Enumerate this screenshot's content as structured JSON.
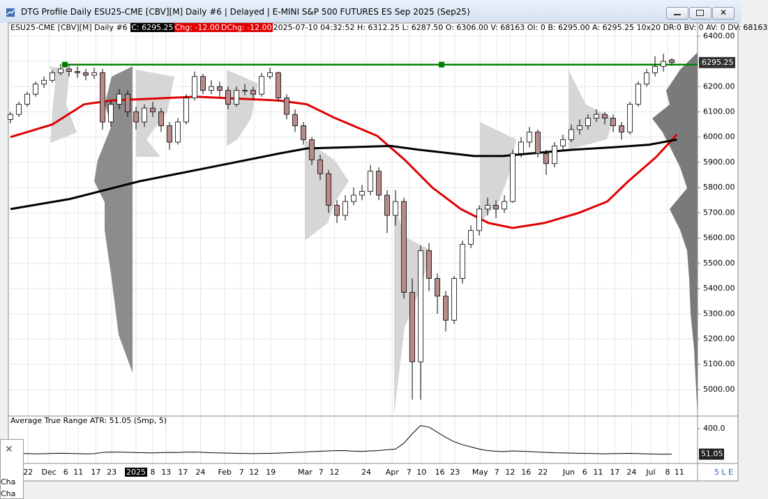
{
  "window": {
    "title": "DTG Profile Daily ESU25-CME [CBV][M]  Daily #6 | Delayed | E-MINI S&P 500 FUTURES ES Sep 2025 (Sep25)",
    "footer": "5 L E"
  },
  "header": {
    "symbol": "ESU25-CME [CBV][M]  Daily #6 ",
    "close": "C: 6295.25",
    "change": "Chg: -12.00",
    "dchange": "DChg: -12.00",
    "quote": "2025-07-10 04:32:52 H: 6312.25 L: 6287.50 O: 6306.00 V: 68163 OI: 0 B: 6295.00 A: 6295.25 10x20 DR:0 BV: 0 AV: 0 DV: 68163"
  },
  "popup": {
    "items": [
      "Cha",
      "Cha"
    ]
  },
  "chart_data": {
    "type": "candlestick",
    "up_color": "#ffffff",
    "down_color": "#b88a8a",
    "open": [
      6070,
      6090,
      6130,
      6170,
      6210,
      6225,
      6255,
      6270,
      6260,
      6255,
      6245,
      6255,
      6060,
      6130,
      6170,
      6100,
      6060,
      6115,
      6100,
      6045,
      5980,
      6060,
      6155,
      6240,
      6185,
      6200,
      6185,
      6130,
      6185,
      6185,
      6170,
      6240,
      6255,
      6155,
      6090,
      6045,
      5990,
      5910,
      5855,
      5730,
      5690,
      5745,
      5770,
      5785,
      5865,
      5770,
      5690,
      5745,
      5385,
      5110,
      5550,
      5440,
      5370,
      5275,
      5440,
      5575,
      5630,
      5715,
      5730,
      5715,
      5745,
      5935,
      5980,
      6020,
      5935,
      5895,
      5965,
      5990,
      6030,
      6045,
      6075,
      6090,
      6075,
      6045,
      6020,
      6130,
      6210,
      6255,
      6280,
      6306
    ],
    "high": [
      6100,
      6140,
      6180,
      6220,
      6240,
      6265,
      6290,
      6285,
      6280,
      6270,
      6275,
      6270,
      6145,
      6190,
      6185,
      6120,
      6130,
      6140,
      6115,
      6060,
      6075,
      6170,
      6260,
      6250,
      6225,
      6220,
      6200,
      6200,
      6210,
      6200,
      6255,
      6275,
      6260,
      6170,
      6110,
      6060,
      6000,
      5930,
      5870,
      5750,
      5770,
      5800,
      5810,
      5890,
      5880,
      5790,
      5790,
      5760,
      5440,
      5570,
      5580,
      5460,
      5390,
      5450,
      5590,
      5650,
      5730,
      5760,
      5750,
      5770,
      5950,
      6000,
      6040,
      6030,
      5950,
      5980,
      6010,
      6050,
      6070,
      6090,
      6110,
      6100,
      6090,
      6060,
      6140,
      6220,
      6270,
      6320,
      6330,
      6312.25
    ],
    "low": [
      6055,
      6080,
      6120,
      6160,
      6195,
      6215,
      6245,
      6240,
      6235,
      6225,
      6230,
      6030,
      6040,
      6110,
      6080,
      6030,
      6040,
      6080,
      6020,
      5950,
      5970,
      6050,
      6145,
      6170,
      6170,
      6160,
      6110,
      6120,
      6165,
      6150,
      6160,
      6230,
      6140,
      6070,
      6020,
      5970,
      5890,
      5830,
      5700,
      5660,
      5670,
      5730,
      5750,
      5770,
      5750,
      5620,
      5650,
      5360,
      4960,
      4960,
      5390,
      5300,
      5230,
      5260,
      5420,
      5560,
      5610,
      5690,
      5680,
      5700,
      5740,
      5920,
      5960,
      5920,
      5850,
      5880,
      5950,
      5980,
      6010,
      6030,
      6060,
      6050,
      6020,
      5990,
      6010,
      6120,
      6200,
      6240,
      6260,
      6287.5
    ],
    "close": [
      6090,
      6130,
      6170,
      6210,
      6225,
      6255,
      6270,
      6260,
      6255,
      6245,
      6255,
      6060,
      6130,
      6170,
      6100,
      6060,
      6115,
      6100,
      6045,
      5980,
      6060,
      6155,
      6240,
      6185,
      6200,
      6185,
      6130,
      6185,
      6185,
      6170,
      6240,
      6255,
      6155,
      6090,
      6045,
      5990,
      5910,
      5855,
      5730,
      5690,
      5745,
      5770,
      5785,
      5865,
      5770,
      5690,
      5745,
      5385,
      5110,
      5550,
      5440,
      5370,
      5275,
      5440,
      5575,
      5630,
      5715,
      5730,
      5715,
      5745,
      5935,
      5980,
      6020,
      5935,
      5895,
      5965,
      5990,
      6030,
      6045,
      6075,
      6090,
      6075,
      6045,
      6020,
      6130,
      6210,
      6255,
      6280,
      6300,
      6295.25
    ],
    "last_price": 6295.25,
    "level": 6287,
    "level_color": "#008000",
    "level_markers": [
      6.5,
      51.5
    ],
    "moving_averages": [
      {
        "color": "#e00000",
        "x": [
          0,
          5,
          8.8,
          12.1,
          22.1,
          32.1,
          35.4,
          38.8,
          43.8,
          47.1,
          50.4,
          53.8,
          57.1,
          60,
          63.8,
          67.9,
          71.3,
          73.8,
          77.1,
          79.6
        ],
        "values": [
          6000,
          6050,
          6130,
          6145,
          6160,
          6145,
          6130,
          6075,
          6005,
          5910,
          5800,
          5715,
          5660,
          5640,
          5660,
          5700,
          5745,
          5825,
          5920,
          6010
        ]
      },
      {
        "color": "#000000",
        "x": [
          0,
          7.1,
          15.4,
          23.8,
          32.1,
          35.4,
          40.4,
          45.4,
          48.8,
          55.4,
          58.8,
          62.1,
          67.1,
          72.1,
          76.3,
          79.6
        ],
        "values": [
          5715,
          5755,
          5825,
          5880,
          5935,
          5955,
          5960,
          5965,
          5950,
          5925,
          5925,
          5935,
          5950,
          5960,
          5970,
          5990
        ]
      }
    ],
    "xlim": [
      -0.25,
      82.08
    ],
    "xticks": [
      {
        "value": 2.1,
        "label": "22"
      },
      {
        "value": 4.6,
        "label": "Dec"
      },
      {
        "value": 6.6,
        "label": "6"
      },
      {
        "value": 8.1,
        "label": "11"
      },
      {
        "value": 10.2,
        "label": "17"
      },
      {
        "value": 12.1,
        "label": "23"
      },
      {
        "value": 15,
        "label": "2025"
      },
      {
        "value": 17,
        "label": "8"
      },
      {
        "value": 18.6,
        "label": "13"
      },
      {
        "value": 20.6,
        "label": "17"
      },
      {
        "value": 22.7,
        "label": "24"
      },
      {
        "value": 25.6,
        "label": "Feb"
      },
      {
        "value": 27.6,
        "label": "7"
      },
      {
        "value": 29.1,
        "label": "12"
      },
      {
        "value": 31.1,
        "label": "19"
      },
      {
        "value": 35.2,
        "label": "Mar"
      },
      {
        "value": 37.1,
        "label": "7"
      },
      {
        "value": 38.7,
        "label": "12"
      },
      {
        "value": 42.5,
        "label": "24"
      },
      {
        "value": 45.6,
        "label": "Apr"
      },
      {
        "value": 47.6,
        "label": "7"
      },
      {
        "value": 49.1,
        "label": "10"
      },
      {
        "value": 51.3,
        "label": "16"
      },
      {
        "value": 53.1,
        "label": "23"
      },
      {
        "value": 56.1,
        "label": "May"
      },
      {
        "value": 58.1,
        "label": "7"
      },
      {
        "value": 59.7,
        "label": "12"
      },
      {
        "value": 61.6,
        "label": "16"
      },
      {
        "value": 63.6,
        "label": "22"
      },
      {
        "value": 66.7,
        "label": "Jun"
      },
      {
        "value": 68.6,
        "label": "6"
      },
      {
        "value": 70.2,
        "label": "11"
      },
      {
        "value": 72.2,
        "label": "17"
      },
      {
        "value": 74.2,
        "label": "24"
      },
      {
        "value": 76.5,
        "label": "Jul"
      },
      {
        "value": 78.5,
        "label": "8"
      },
      {
        "value": 79.9,
        "label": "11"
      }
    ],
    "ylim": [
      4895,
      6452
    ],
    "yticks": [
      {
        "value": 5000,
        "label": "5000.00"
      },
      {
        "value": 5100,
        "label": "5100.00"
      },
      {
        "value": 5200,
        "label": "5200.00"
      },
      {
        "value": 5300,
        "label": "5300.00"
      },
      {
        "value": 5400,
        "label": "5400.00"
      },
      {
        "value": 5500,
        "label": "5500.00"
      },
      {
        "value": 5600,
        "label": "5600.00"
      },
      {
        "value": 5700,
        "label": "5700.00"
      },
      {
        "value": 5800,
        "label": "5800.00"
      },
      {
        "value": 5900,
        "label": "5900.00"
      },
      {
        "value": 6000,
        "label": "6000.00"
      },
      {
        "value": 6100,
        "label": "6100.00"
      },
      {
        "value": 6200,
        "label": "6200.00"
      },
      {
        "value": 6300,
        "label": "6300.00"
      },
      {
        "value": 6400,
        "label": "6400.00"
      }
    ],
    "grid": true,
    "atr": {
      "title": "Average True Range  ATR: 51.05  (Smp, 5)",
      "color": "#000000",
      "values": [
        60,
        62,
        58,
        55,
        57,
        60,
        63,
        60,
        58,
        55,
        57,
        75,
        80,
        78,
        76,
        72,
        70,
        68,
        72,
        75,
        74,
        78,
        80,
        75,
        70,
        68,
        65,
        62,
        60,
        58,
        60,
        62,
        65,
        70,
        75,
        78,
        85,
        90,
        95,
        100,
        98,
        92,
        88,
        95,
        100,
        110,
        120,
        200,
        330,
        440,
        420,
        350,
        280,
        220,
        180,
        150,
        120,
        100,
        90,
        85,
        95,
        90,
        85,
        80,
        75,
        70,
        68,
        65,
        62,
        60,
        58,
        55,
        58,
        60,
        62,
        58,
        55,
        52,
        50,
        51.05
      ],
      "last": 51.05,
      "ylim": [
        0,
        570
      ],
      "yticks": [
        {
          "value": 400,
          "label": "400.0"
        }
      ]
    }
  }
}
